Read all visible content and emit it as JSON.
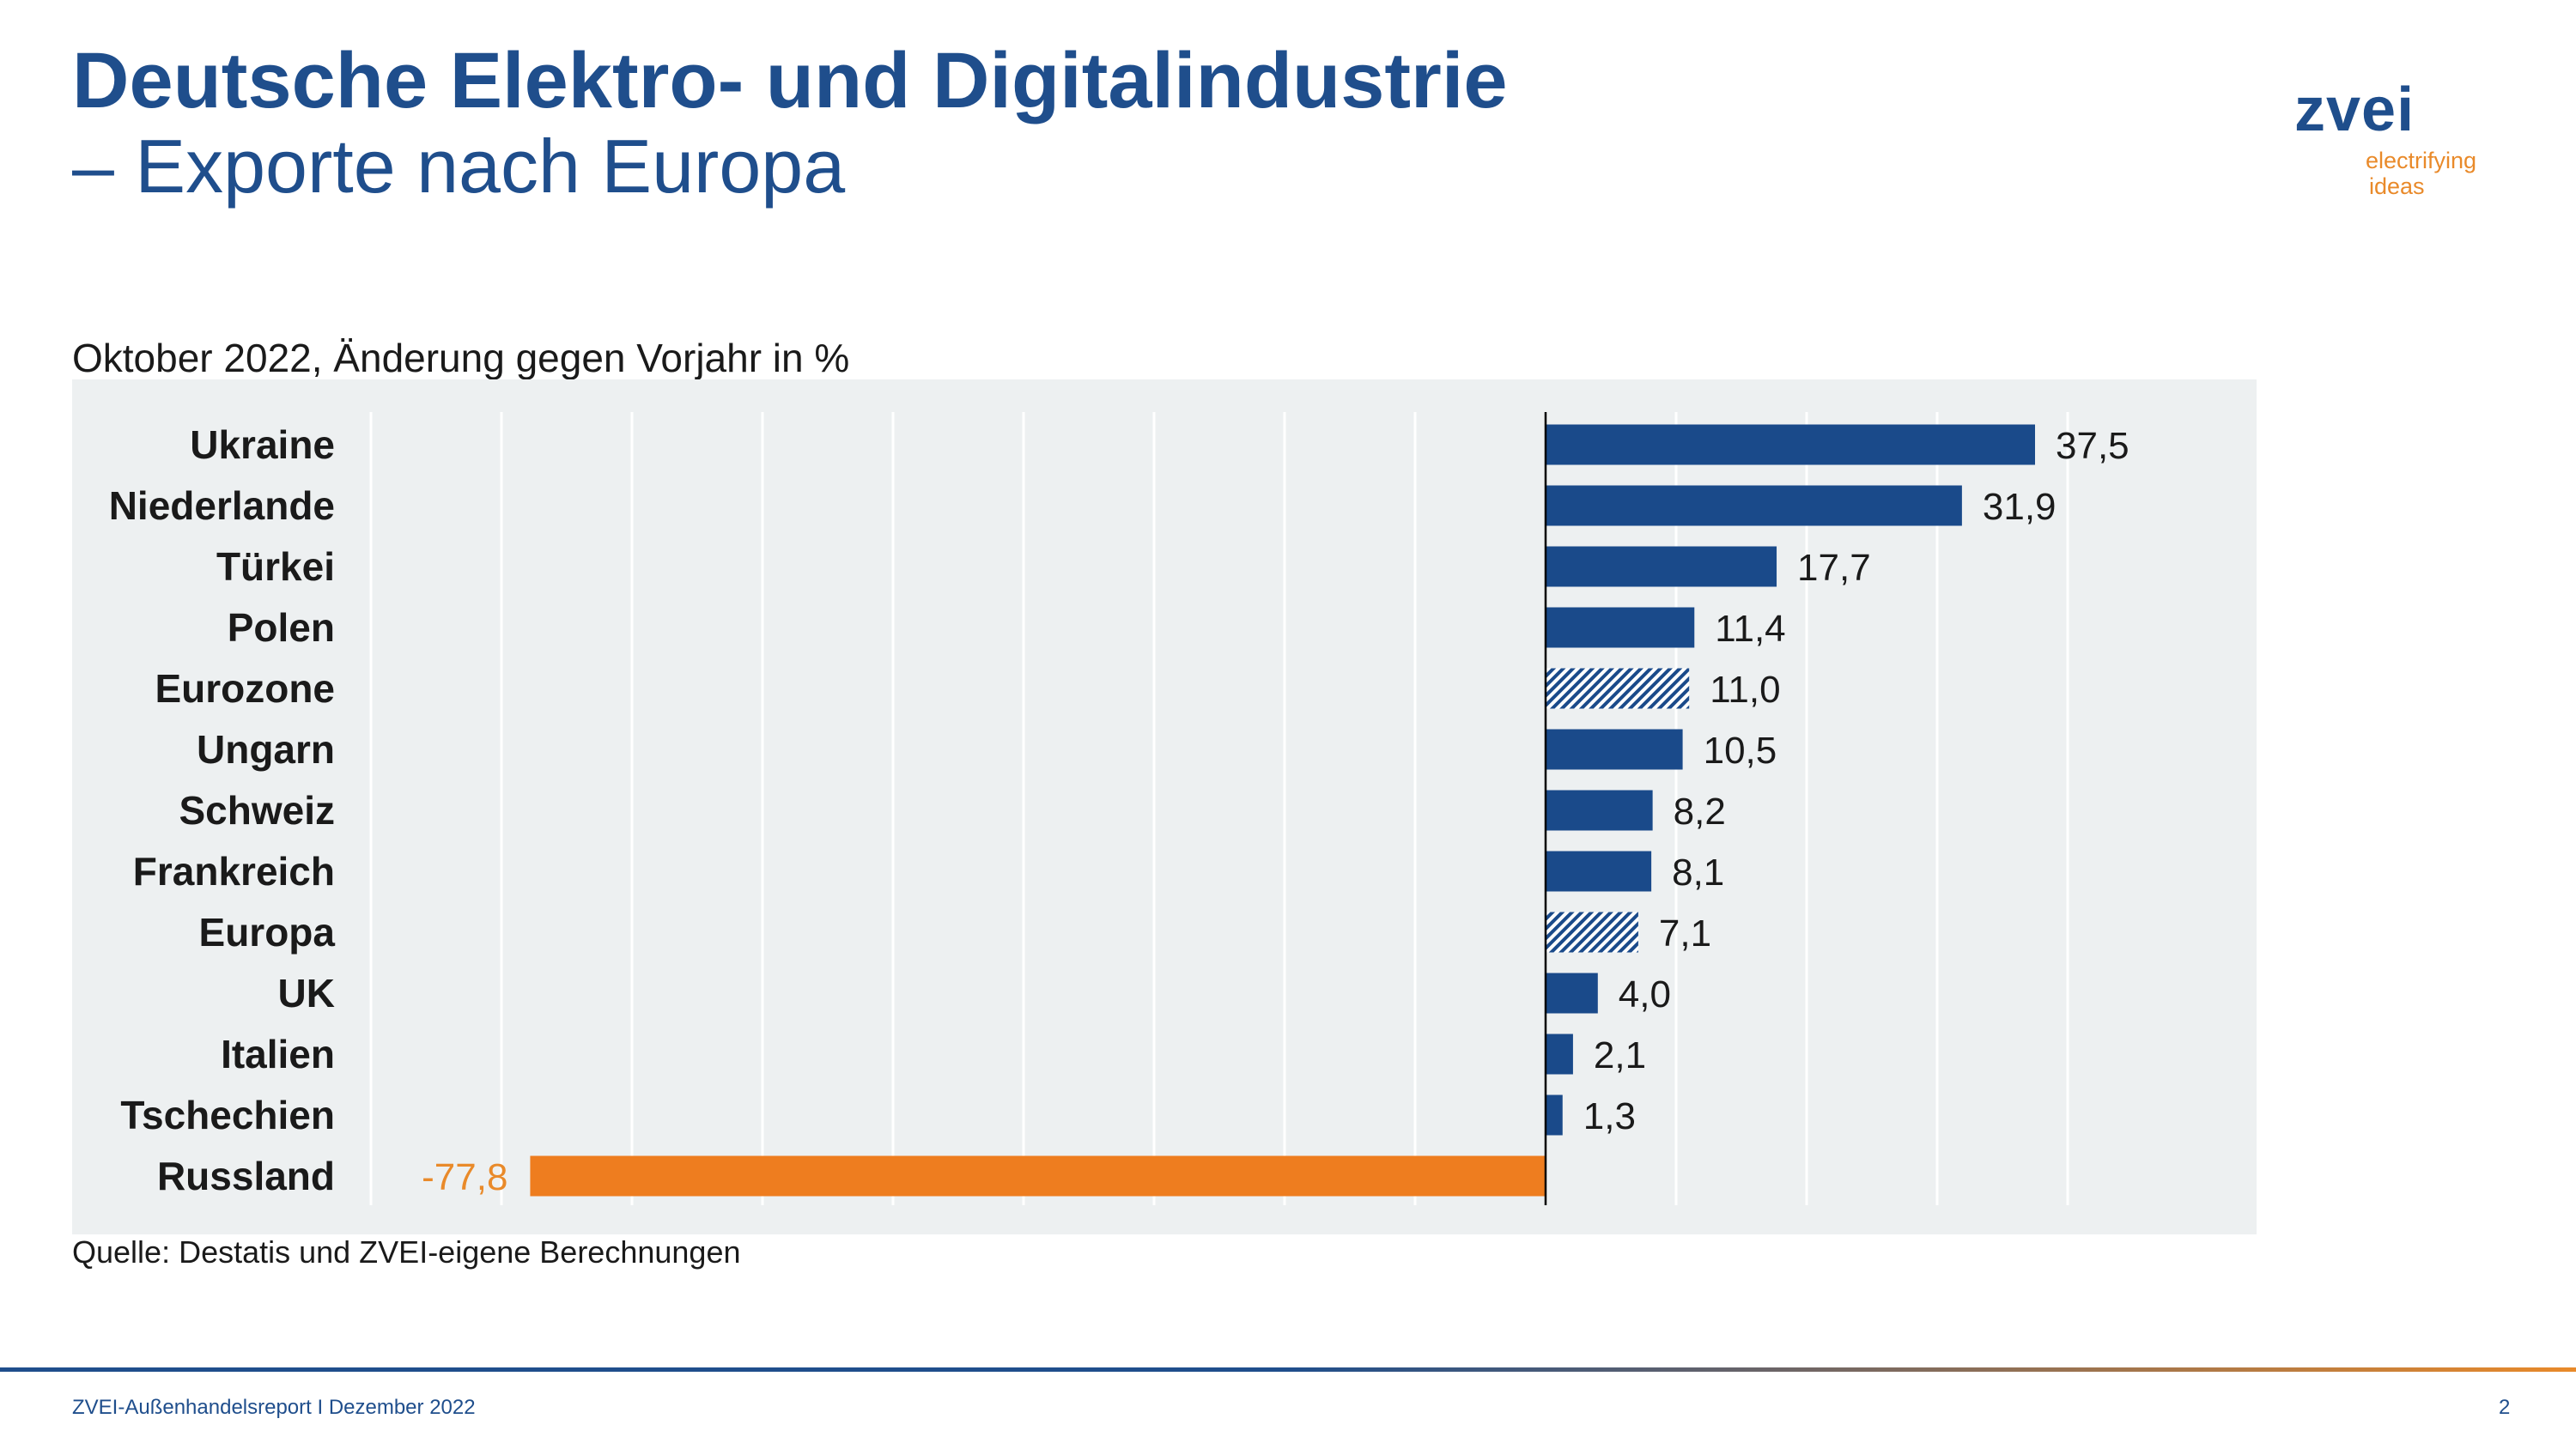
{
  "header": {
    "title_line1": "Deutsche Elektro- und Digitalindustrie",
    "title_line2": "– Exporte nach Europa"
  },
  "logo": {
    "word": "zvei",
    "tagline1": "electrifying",
    "tagline2": "ideas"
  },
  "chart_data": {
    "type": "bar",
    "orientation": "horizontal",
    "subtitle": "Oktober 2022, Änderung gegen Vorjahr in %",
    "categories": [
      "Ukraine",
      "Niederlande",
      "Türkei",
      "Polen",
      "Eurozone",
      "Ungarn",
      "Schweiz",
      "Frankreich",
      "Europa",
      "UK",
      "Italien",
      "Tschechien",
      "Russland"
    ],
    "values": [
      37.5,
      31.9,
      17.7,
      11.4,
      11.0,
      10.5,
      8.2,
      8.1,
      7.1,
      4.0,
      2.1,
      1.3,
      -77.8
    ],
    "value_labels": [
      "37,5",
      "31,9",
      "17,7",
      "11,4",
      "11,0",
      "10,5",
      "8,2",
      "8,1",
      "7,1",
      "4,0",
      "2,1",
      "1,3",
      "-77,8"
    ],
    "bar_styles": [
      "solid",
      "solid",
      "solid",
      "solid",
      "hatched",
      "solid",
      "solid",
      "solid",
      "hatched",
      "solid",
      "solid",
      "solid",
      "negative"
    ],
    "xlim": [
      -90,
      40
    ],
    "xtick_step": 10,
    "grid": true,
    "legend": "none",
    "colors": {
      "bar": "#1a4a8a",
      "negative": "#ee7d1f",
      "negative_label": "#e98a2a",
      "background": "#edf0f1",
      "grid": "#ffffff"
    }
  },
  "source": "Quelle: Destatis und ZVEI-eigene Berechnungen",
  "footer": {
    "report": "ZVEI-Außenhandelsreport I Dezember 2022",
    "page_number": "2"
  }
}
